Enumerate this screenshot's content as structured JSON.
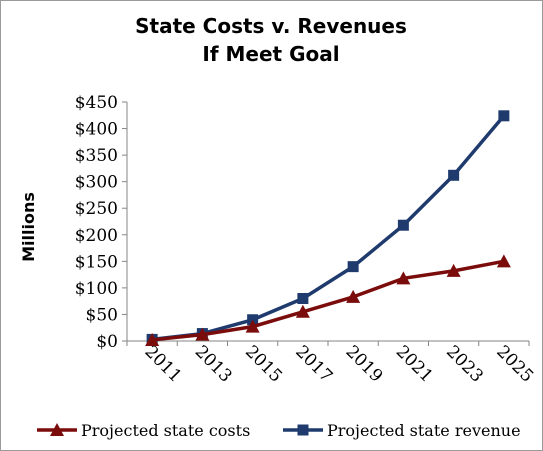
{
  "chart_data": {
    "type": "line",
    "title": [
      "State Costs v. Revenues",
      "If Meet Goal"
    ],
    "xlabel": "",
    "ylabel": "Millions",
    "x": [
      "2011",
      "2013",
      "2015",
      "2017",
      "2019",
      "2021",
      "2023",
      "2025"
    ],
    "ylim": [
      0,
      450
    ],
    "yticks": [
      "$0",
      "$50",
      "$100",
      "$150",
      "$200",
      "$250",
      "$300",
      "$350",
      "$400",
      "$450"
    ],
    "ytick_values": [
      0,
      50,
      100,
      150,
      200,
      250,
      300,
      350,
      400,
      450
    ],
    "grid": false,
    "legend_position": "bottom",
    "series": [
      {
        "name": "Projected state costs",
        "values": [
          2,
          12,
          27,
          55,
          83,
          118,
          132,
          150
        ],
        "color": "#7b0c0c",
        "marker": "triangle"
      },
      {
        "name": "Projected state revenue",
        "values": [
          3,
          14,
          40,
          80,
          140,
          218,
          312,
          424
        ],
        "color": "#1f3b6e",
        "marker": "square"
      }
    ]
  }
}
